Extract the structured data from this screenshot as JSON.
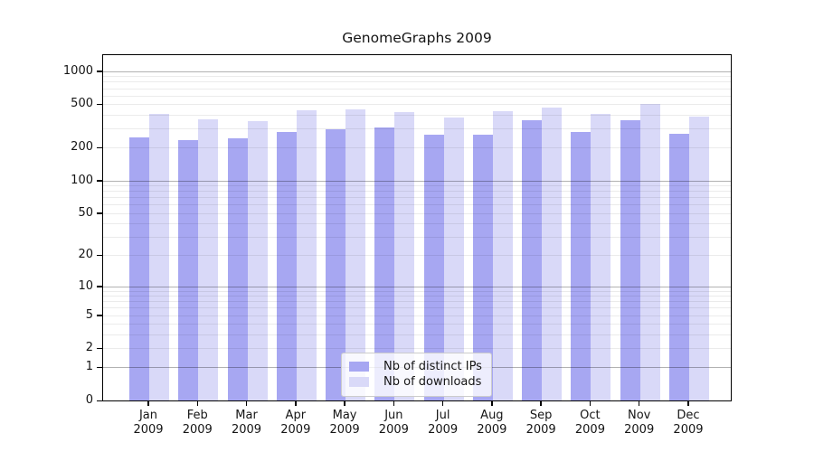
{
  "chart_data": {
    "type": "bar",
    "title": "GenomeGraphs 2009",
    "categories": [
      "Jan 2009",
      "Feb 2009",
      "Mar 2009",
      "Apr 2009",
      "May 2009",
      "Jun 2009",
      "Jul 2009",
      "Aug 2009",
      "Sep 2009",
      "Oct 2009",
      "Nov 2009",
      "Dec 2009"
    ],
    "series": [
      {
        "name": "Nb of distinct IPs",
        "color": "#a7a7f2",
        "values": [
          250,
          236,
          243,
          277,
          296,
          305,
          264,
          264,
          357,
          276,
          356,
          268
        ]
      },
      {
        "name": "Nb of downloads",
        "color": "#d9d9f8",
        "values": [
          410,
          361,
          352,
          437,
          446,
          422,
          380,
          431,
          465,
          411,
          505,
          387
        ]
      }
    ],
    "xlabel": "",
    "ylabel": "",
    "y_scale": "log10(1+x)",
    "y_ticks": [
      0,
      1,
      2,
      5,
      10,
      20,
      50,
      100,
      200,
      500,
      1000
    ],
    "y_major_gridlines": [
      1,
      10,
      100,
      1000
    ],
    "y_minor_gridlines": [
      2,
      3,
      4,
      5,
      6,
      7,
      8,
      9,
      20,
      30,
      40,
      50,
      60,
      70,
      80,
      90,
      200,
      300,
      400,
      500,
      600,
      700,
      800,
      900
    ],
    "ylim": [
      0,
      1400
    ],
    "grid": true,
    "legend_position": "lower center",
    "colors": {
      "major_grid": "#b3b3b3",
      "minor_grid": "#ebebeb",
      "axis": "#000000",
      "text": "#151515",
      "background": "#ffffff"
    }
  }
}
